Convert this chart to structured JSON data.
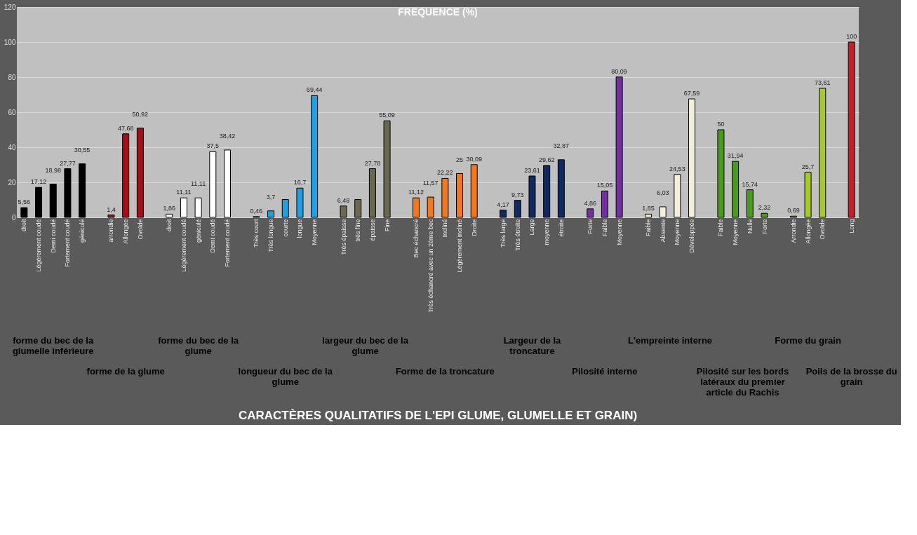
{
  "chart_data": {
    "type": "bar",
    "title": "FREQUENCE (%)",
    "categories": [
      "droit",
      "Légèrement coudé",
      "Demi coudé",
      "Fortement coudé",
      "géniculé",
      null,
      "arrondie",
      "Allongée",
      "Ovoïde",
      null,
      "droit",
      "Légèrement coudé",
      "géniculé",
      "Demi coudé",
      "Fortement coudé",
      null,
      "Très court",
      "Très longue",
      "courte",
      "longue",
      "Moyenne",
      null,
      "Très épaisse",
      "très fine",
      "épaisse",
      "Fine",
      null,
      "Bec échancré",
      "Très échancré avec un 2ème bec",
      "Incliné",
      "Légèrement incliné",
      "Droite",
      null,
      "Très large",
      "Très étroite",
      "Large",
      "moyenne",
      "étroite",
      null,
      "Forte",
      "Faible",
      "Moyenne",
      null,
      "Faible",
      "Absente",
      "Moyenne",
      "Développée",
      null,
      "Faible",
      "Moyenne",
      "Nulle",
      "Forte",
      null,
      "Arrondie",
      "Allongée",
      "Ovoïde",
      null,
      "Long"
    ],
    "values": [
      5.56,
      17.12,
      18.98,
      27.77,
      30.55,
      null,
      1.4,
      47.68,
      50.92,
      null,
      1.86,
      11.11,
      11.11,
      37.5,
      38.42,
      null,
      0.46,
      3.7,
      10.2,
      16.7,
      69.44,
      null,
      6.48,
      10.2,
      27.78,
      55.09,
      null,
      11.12,
      11.57,
      22.22,
      25,
      30.09,
      null,
      4.17,
      9.73,
      23.61,
      29.62,
      32.87,
      null,
      4.86,
      15.05,
      80.09,
      null,
      1.85,
      6.03,
      24.53,
      67.59,
      null,
      50,
      31.94,
      15.74,
      2.32,
      null,
      0.69,
      25.7,
      73.61,
      null,
      100
    ],
    "value_labels": [
      "5,56",
      "17,12",
      "18,98",
      "27,77",
      "30,55",
      null,
      "1,4",
      "47,68",
      "50,92",
      null,
      "1,86",
      "11,11",
      "11,11",
      "37,5",
      "38,42",
      null,
      "0,46",
      "3,7",
      null,
      "16,7",
      "69,44",
      null,
      "6,48",
      null,
      "27,78",
      "55,09",
      null,
      "11,12",
      "11,57",
      "22,22",
      "25",
      "30,09",
      null,
      "4,17",
      "9,73",
      "23,61",
      "29,62",
      "32,87",
      null,
      "4,86",
      "15,05",
      "80,09",
      null,
      "1,85",
      "6,03",
      "24,53",
      "67,59",
      null,
      "50",
      "31,94",
      "15,74",
      "2,32",
      null,
      "0,69",
      "25,7",
      "73,61",
      null,
      "100"
    ],
    "colors": [
      "#000000",
      "#000000",
      "#000000",
      "#000000",
      "#000000",
      null,
      "#a01018",
      "#a01018",
      "#a01018",
      null,
      "#ffffff",
      "#ffffff",
      "#ffffff",
      "#ffffff",
      "#ffffff",
      null,
      "#20a0e0",
      "#20a0e0",
      "#20a0e0",
      "#20a0e0",
      "#20a0e0",
      null,
      "#6b6850",
      "#6b6850",
      "#6b6850",
      "#6b6850",
      null,
      "#f07820",
      "#f07820",
      "#f07820",
      "#f07820",
      "#f07820",
      null,
      "#102a60",
      "#102a60",
      "#102a60",
      "#102a60",
      "#102a60",
      null,
      "#7030a0",
      "#7030a0",
      "#7030a0",
      null,
      "#f2f0dc",
      "#f2f0dc",
      "#f2f0dc",
      "#f2f0dc",
      null,
      "#4a9a20",
      "#4a9a20",
      "#4a9a20",
      "#4a9a20",
      null,
      "#a8c830",
      "#a8c830",
      "#a8c830",
      null,
      "#c0202a"
    ],
    "annotations": [
      "forme du bec de la glumelle inférieure",
      "forme de la glume",
      "forme du bec de la glume",
      "longueur du bec de la glume",
      "largeur du bec de la glume",
      "Forme de la troncature",
      "Largeur de la troncature",
      "Pilosité interne",
      "L'empreinte interne",
      "Pilosité sur les bords latéraux du premier article du Rachis",
      "Forme du grain",
      "Poils de la brosse du grain",
      "CARACTÈRES QUALITATIFS DE L'EPI  GLUME, GLUMELLE ET GRAIN)"
    ],
    "ylim": [
      0,
      120
    ],
    "yticks": [
      0,
      20,
      40,
      60,
      80,
      100,
      120
    ],
    "grid": "y"
  }
}
